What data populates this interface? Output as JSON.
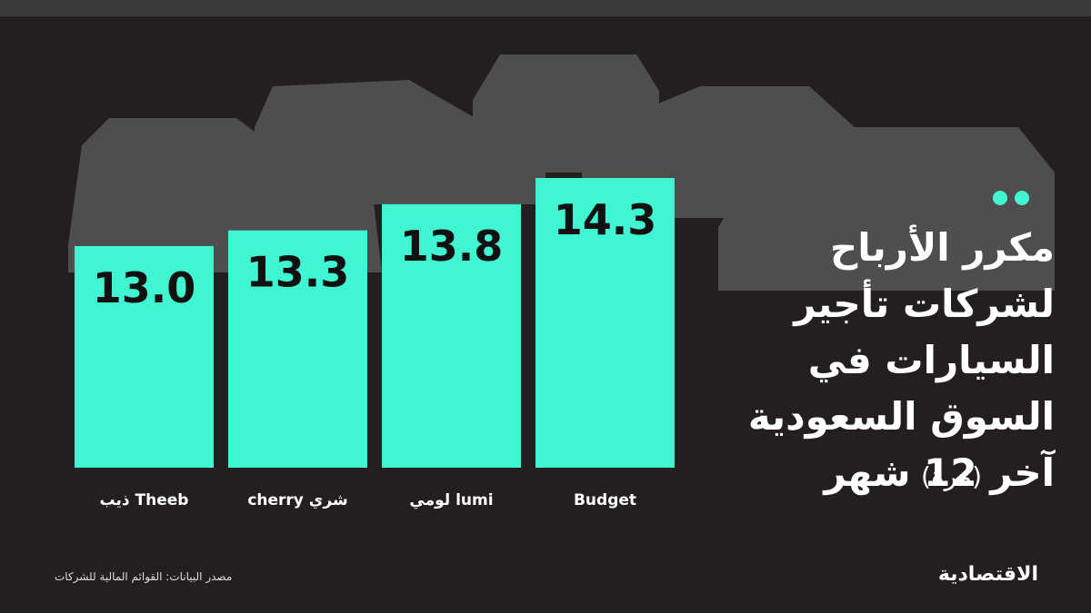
{
  "chart_data": {
    "type": "bar",
    "title": "مكرر الأرباح لشركات تأجير السيارات في السوق السعودية آخر 12 شهر",
    "subtitle": "(مرة)",
    "categories": [
      "ذيب Theeb",
      "cherry شري",
      "لومي lumi",
      "Budget"
    ],
    "values": [
      13.0,
      13.3,
      13.8,
      14.3
    ],
    "value_labels": [
      "13.0",
      "13.3",
      "13.8",
      "14.3"
    ],
    "color": "#40f5d2",
    "ylim": [
      8.77,
      14.3
    ],
    "source": "مصدر البيانات: القوائم المالية للشركات",
    "brand": "الاقتصادية"
  }
}
